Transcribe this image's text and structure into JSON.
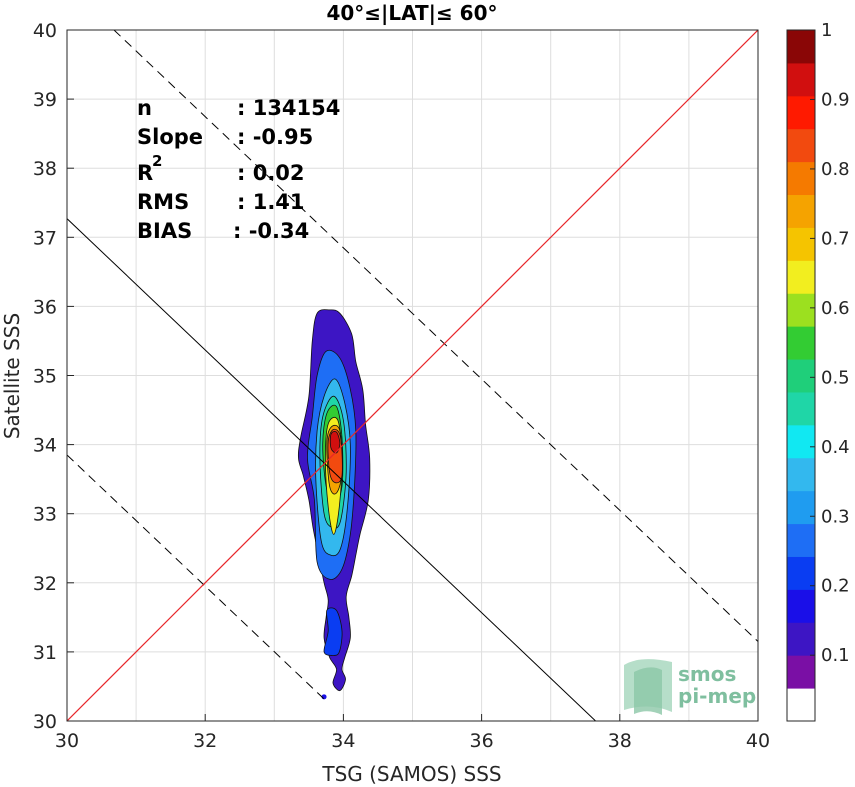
{
  "chart_data": {
    "type": "heatmap",
    "title": "40°≤|LAT|≤ 60°",
    "xlabel": "TSG (SAMOS) SSS",
    "ylabel": "Satellite SSS",
    "xlim": [
      30,
      40
    ],
    "ylim": [
      30,
      40
    ],
    "x_ticks": [
      "30",
      "32",
      "34",
      "36",
      "38",
      "40"
    ],
    "y_ticks": [
      "30",
      "31",
      "32",
      "33",
      "34",
      "35",
      "36",
      "37",
      "38",
      "39",
      "40"
    ],
    "grid": true,
    "stats": [
      {
        "label": "n",
        "value": ": 134154"
      },
      {
        "label": "Slope",
        "value": ": -0.95"
      },
      {
        "label": "R",
        "sup": "2",
        "value": ": 0.02"
      },
      {
        "label": "RMS",
        "value": ": 1.41"
      },
      {
        "label": "BIAS",
        "value": ": -0.34"
      }
    ],
    "lines": {
      "identity": {
        "color": "#e8262a",
        "points": [
          [
            30,
            30
          ],
          [
            40,
            40
          ]
        ]
      },
      "regression": {
        "color": "#000000",
        "style": "solid",
        "points": [
          [
            30,
            37.27
          ],
          [
            37.65,
            30
          ]
        ]
      },
      "upper_bound": {
        "color": "#000000",
        "style": "dashed",
        "points": [
          [
            30.68,
            40
          ],
          [
            40,
            31.15
          ]
        ]
      },
      "lower_bound": {
        "color": "#000000",
        "style": "dashed",
        "points": [
          [
            30,
            33.85
          ],
          [
            33.74,
            30.3
          ]
        ]
      }
    },
    "density_contours": {
      "center": [
        33.9,
        34.0
      ],
      "levels": [
        {
          "level": 0.05,
          "color": "#3d15c4",
          "points": [
            [
              33.38,
              34.1
            ],
            [
              33.5,
              34.7
            ],
            [
              33.55,
              35.5
            ],
            [
              33.62,
              35.9
            ],
            [
              33.8,
              35.95
            ],
            [
              33.95,
              35.9
            ],
            [
              34.12,
              35.6
            ],
            [
              34.18,
              35.2
            ],
            [
              34.28,
              34.8
            ],
            [
              34.32,
              34.3
            ],
            [
              34.38,
              33.8
            ],
            [
              34.36,
              33.2
            ],
            [
              34.24,
              32.7
            ],
            [
              34.18,
              32.4
            ],
            [
              34.12,
              32.1
            ],
            [
              34.04,
              31.8
            ],
            [
              34.08,
              31.5
            ],
            [
              34.1,
              31.2
            ],
            [
              34.02,
              30.92
            ],
            [
              33.98,
              30.75
            ],
            [
              34.03,
              30.6
            ],
            [
              33.95,
              30.44
            ],
            [
              33.85,
              30.55
            ],
            [
              33.9,
              30.75
            ],
            [
              33.8,
              30.92
            ],
            [
              33.72,
              31.2
            ],
            [
              33.75,
              31.5
            ],
            [
              33.78,
              31.75
            ],
            [
              33.72,
              32.0
            ],
            [
              33.64,
              32.4
            ],
            [
              33.56,
              32.8
            ],
            [
              33.5,
              33.2
            ],
            [
              33.42,
              33.55
            ],
            [
              33.35,
              33.8
            ]
          ]
        },
        {
          "level": 0.1,
          "color": "#0a3df2",
          "points": [
            [
              33.72,
              31.0
            ],
            [
              33.78,
              31.3
            ],
            [
              33.76,
              31.6
            ],
            [
              33.9,
              31.6
            ],
            [
              33.98,
              31.3
            ],
            [
              33.94,
              31.0
            ],
            [
              33.85,
              30.95
            ]
          ]
        },
        {
          "level": 0.1,
          "color": "#1e6ef5",
          "points": [
            [
              33.62,
              32.3
            ],
            [
              33.58,
              33.2
            ],
            [
              33.48,
              33.8
            ],
            [
              33.55,
              34.4
            ],
            [
              33.62,
              35.0
            ],
            [
              33.75,
              35.35
            ],
            [
              33.95,
              35.25
            ],
            [
              34.1,
              34.8
            ],
            [
              34.18,
              34.2
            ],
            [
              34.16,
              33.4
            ],
            [
              34.1,
              32.7
            ],
            [
              33.98,
              32.2
            ],
            [
              33.8,
              32.05
            ]
          ]
        },
        {
          "level": 0.3,
          "color": "#33b8ee",
          "points": [
            [
              33.68,
              32.6
            ],
            [
              33.6,
              33.5
            ],
            [
              33.62,
              34.2
            ],
            [
              33.72,
              34.7
            ],
            [
              33.88,
              34.95
            ],
            [
              34.02,
              34.6
            ],
            [
              34.1,
              34.0
            ],
            [
              34.06,
              33.1
            ],
            [
              33.96,
              32.5
            ],
            [
              33.82,
              32.4
            ]
          ]
        },
        {
          "level": 0.4,
          "color": "#1fd6a7",
          "points": [
            [
              33.72,
              33.0
            ],
            [
              33.66,
              33.8
            ],
            [
              33.7,
              34.4
            ],
            [
              33.86,
              34.7
            ],
            [
              34.0,
              34.35
            ],
            [
              34.04,
              33.6
            ],
            [
              33.96,
              32.9
            ],
            [
              33.84,
              32.8
            ]
          ]
        },
        {
          "level": 0.5,
          "color": "#33cc33",
          "points": [
            [
              33.75,
              33.4
            ],
            [
              33.7,
              34.0
            ],
            [
              33.76,
              34.45
            ],
            [
              33.9,
              34.55
            ],
            [
              33.98,
              34.1
            ],
            [
              33.98,
              33.4
            ],
            [
              33.86,
              33.1
            ]
          ]
        },
        {
          "level": 0.6,
          "color": "#f2ee1f",
          "points": [
            [
              33.78,
              33.1
            ],
            [
              33.74,
              33.8
            ],
            [
              33.78,
              34.3
            ],
            [
              33.92,
              34.35
            ],
            [
              33.98,
              33.8
            ],
            [
              33.94,
              33.1
            ],
            [
              33.86,
              32.7
            ]
          ]
        },
        {
          "level": 0.7,
          "color": "#f5a300",
          "points": [
            [
              33.8,
              33.4
            ],
            [
              33.76,
              34.0
            ],
            [
              33.82,
              34.25
            ],
            [
              33.95,
              34.2
            ],
            [
              33.98,
              33.6
            ],
            [
              33.9,
              33.3
            ]
          ]
        },
        {
          "level": 0.8,
          "color": "#f24a0f",
          "points": [
            [
              33.8,
              33.6
            ],
            [
              33.78,
              34.05
            ],
            [
              33.86,
              34.22
            ],
            [
              33.96,
              34.1
            ],
            [
              33.98,
              33.55
            ],
            [
              33.88,
              33.45
            ]
          ]
        },
        {
          "level": 0.9,
          "color": "#d10f0f",
          "points": [
            [
              33.82,
              33.95
            ],
            [
              33.82,
              34.15
            ],
            [
              33.9,
              34.18
            ],
            [
              33.95,
              34.02
            ],
            [
              33.9,
              33.88
            ]
          ]
        }
      ],
      "outlier_point": [
        33.72,
        30.35
      ]
    },
    "colorbar": {
      "ticks": [
        "0.1",
        "0.2",
        "0.3",
        "0.4",
        "0.5",
        "0.6",
        "0.7",
        "0.8",
        "0.9",
        "1"
      ],
      "colors": [
        "#ffffff",
        "#7a0fa5",
        "#3d15c4",
        "#1a0fe8",
        "#0a3df2",
        "#1e6ef5",
        "#1f9cf0",
        "#33b8ee",
        "#11e8f2",
        "#1fd6a7",
        "#1fcf7a",
        "#33cc33",
        "#9ce01f",
        "#f2ee1f",
        "#f5c400",
        "#f5a300",
        "#f57a00",
        "#f24a0f",
        "#ff1a00",
        "#d10f0f",
        "#8a0606"
      ]
    },
    "logo": {
      "line1": "smos",
      "line2": "pi-mep"
    }
  }
}
